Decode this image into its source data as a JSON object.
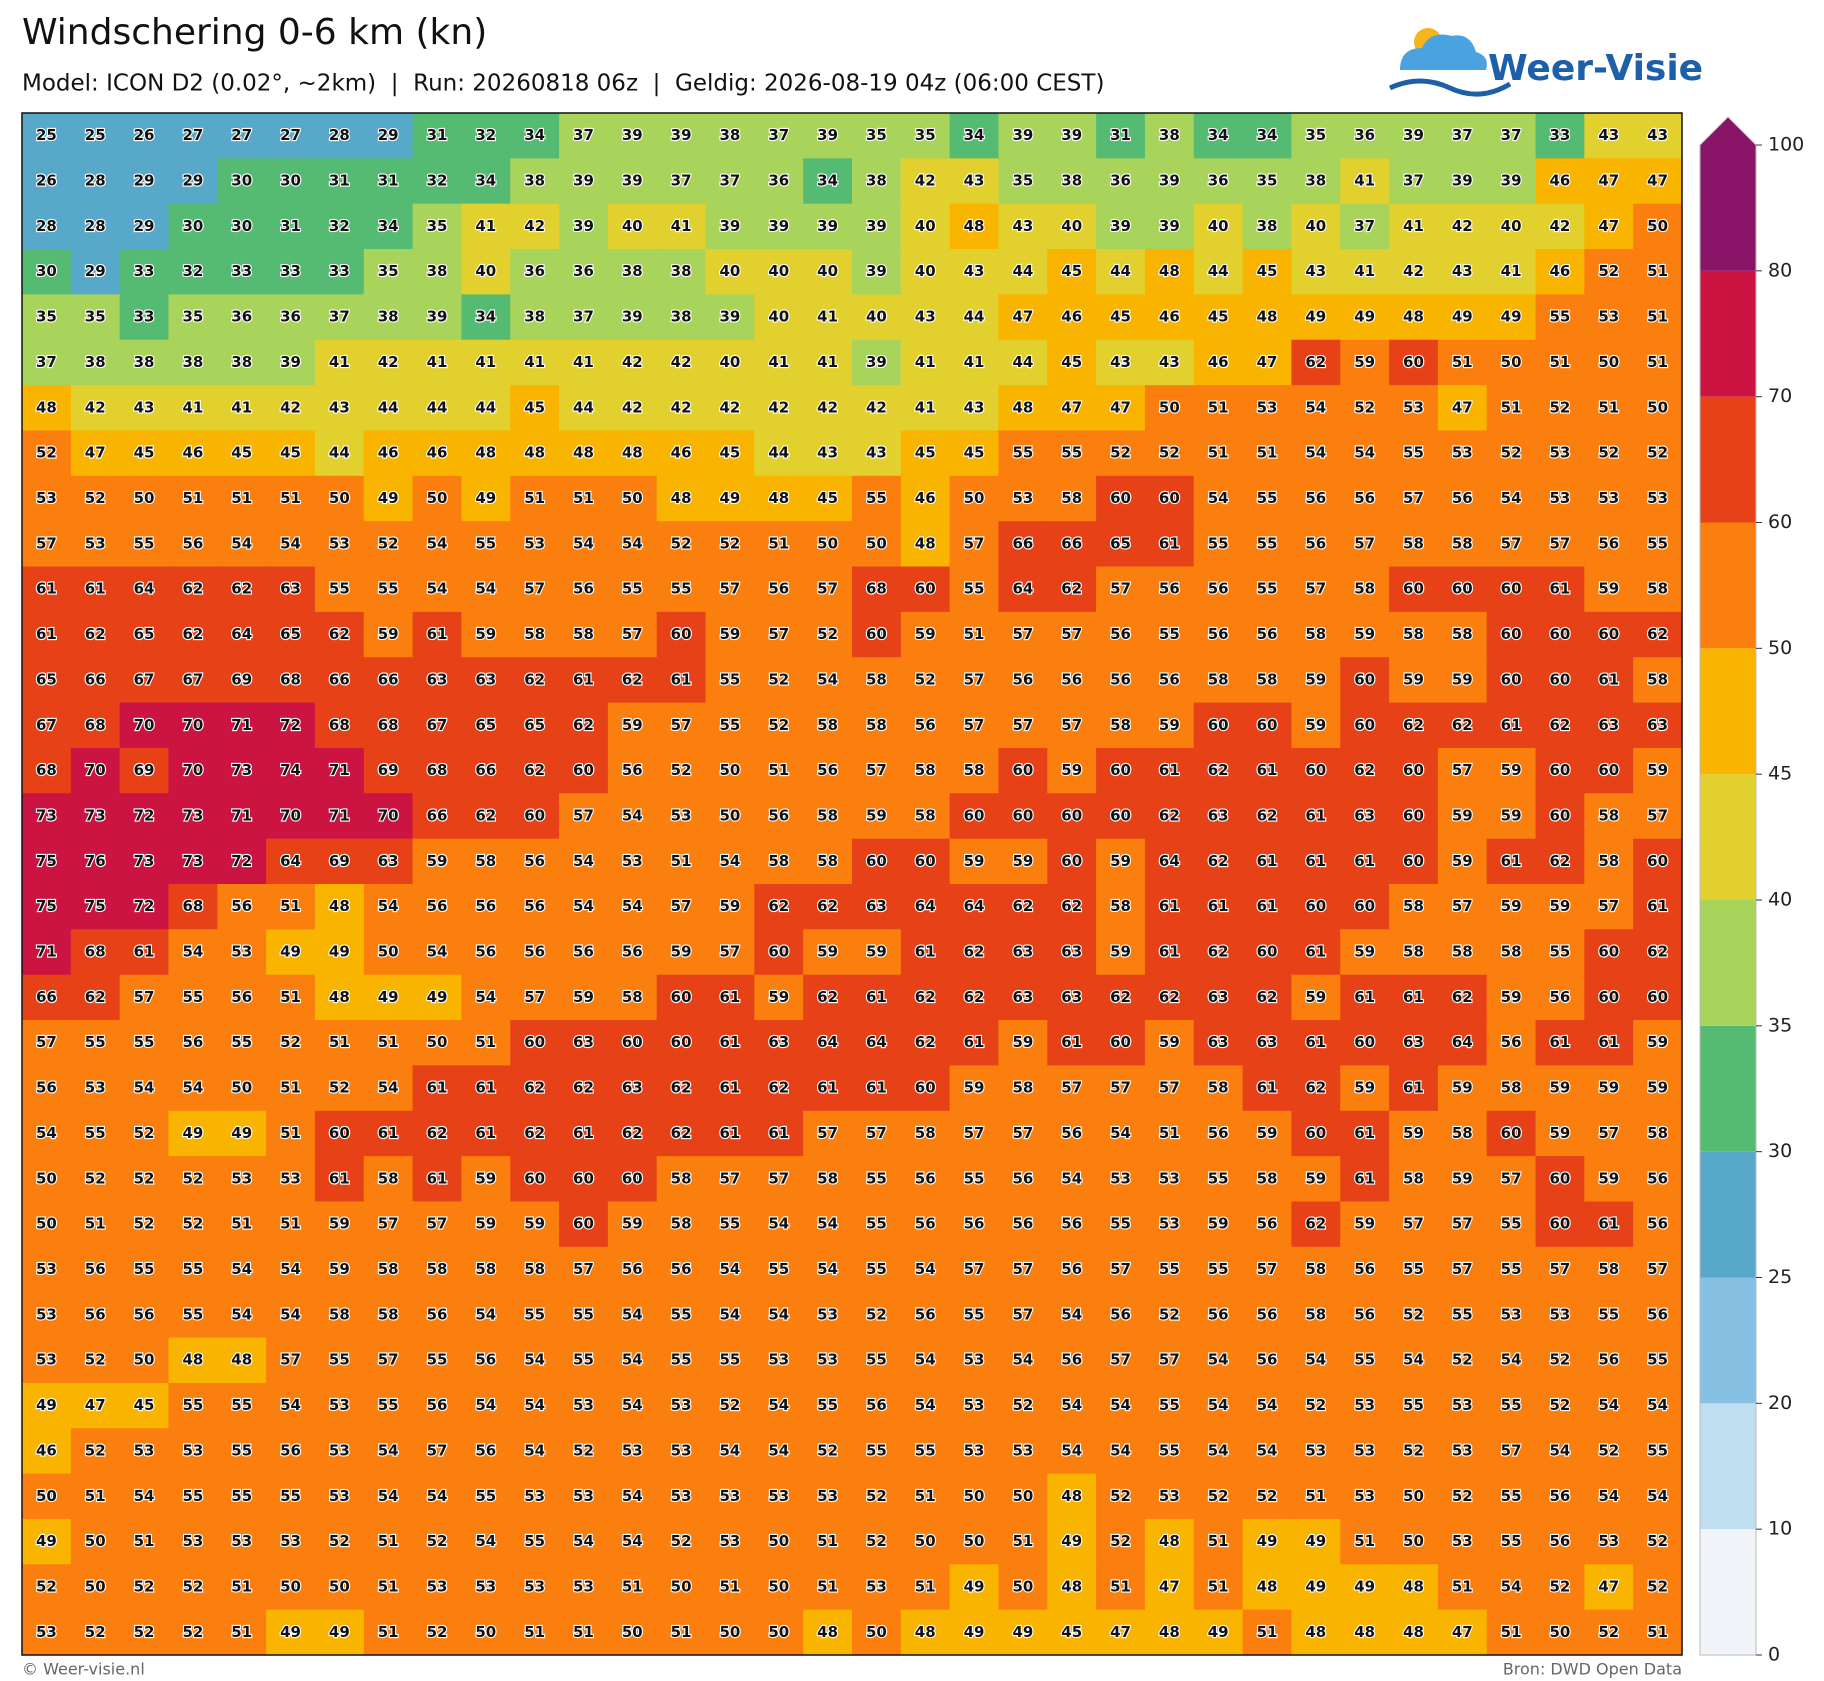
{
  "header": {
    "title": "Windschering 0-6 km (kn)",
    "subtitle": "Model: ICON D2 (0.02°, ~2km)  |  Run: 20260818 06z  |  Geldig: 2026-08-19 04z (06:00 CEST)"
  },
  "logo": "Weer-Visie",
  "map": {
    "type": "value-grid",
    "values": [
      [
        25,
        25,
        26,
        27,
        27,
        27,
        28,
        29,
        31,
        32,
        34,
        37,
        39,
        39,
        38,
        37,
        39,
        35,
        35,
        34,
        39,
        39,
        31,
        38,
        34,
        34,
        35,
        36,
        39,
        37,
        37,
        33,
        43,
        43
      ],
      [
        26,
        28,
        29,
        29,
        30,
        30,
        31,
        31,
        32,
        34,
        38,
        39,
        39,
        37,
        37,
        36,
        34,
        38,
        42,
        43,
        35,
        38,
        36,
        39,
        36,
        35,
        38,
        41,
        37,
        39,
        39,
        46,
        47,
        47
      ],
      [
        28,
        28,
        29,
        30,
        30,
        31,
        32,
        34,
        35,
        41,
        42,
        39,
        40,
        41,
        39,
        39,
        39,
        39,
        40,
        48,
        43,
        40,
        39,
        39,
        40,
        38,
        40,
        37,
        41,
        42,
        40,
        42,
        47,
        50
      ],
      [
        30,
        29,
        33,
        32,
        33,
        33,
        33,
        35,
        38,
        40,
        36,
        36,
        38,
        38,
        40,
        40,
        40,
        39,
        40,
        43,
        44,
        45,
        44,
        48,
        44,
        45,
        43,
        41,
        42,
        43,
        41,
        46,
        52,
        51
      ],
      [
        35,
        35,
        33,
        35,
        36,
        36,
        37,
        38,
        39,
        34,
        38,
        37,
        39,
        38,
        39,
        40,
        41,
        40,
        43,
        44,
        47,
        46,
        45,
        46,
        45,
        48,
        49,
        49,
        48,
        49,
        49,
        55,
        53,
        51
      ],
      [
        37,
        38,
        38,
        38,
        38,
        39,
        41,
        42,
        41,
        41,
        41,
        41,
        42,
        42,
        40,
        41,
        41,
        39,
        41,
        41,
        44,
        45,
        43,
        43,
        46,
        47,
        62,
        59,
        60,
        51,
        50,
        51,
        50,
        51
      ],
      [
        48,
        42,
        43,
        41,
        41,
        42,
        43,
        44,
        44,
        44,
        45,
        44,
        42,
        42,
        42,
        42,
        42,
        42,
        41,
        43,
        48,
        47,
        47,
        50,
        51,
        53,
        54,
        52,
        53,
        47,
        51,
        52,
        51,
        50
      ],
      [
        52,
        47,
        45,
        46,
        45,
        45,
        44,
        46,
        46,
        48,
        48,
        48,
        48,
        46,
        45,
        44,
        43,
        43,
        45,
        45,
        55,
        55,
        52,
        52,
        51,
        51,
        54,
        54,
        55,
        53,
        52,
        53,
        52,
        52
      ],
      [
        53,
        52,
        50,
        51,
        51,
        51,
        50,
        49,
        50,
        49,
        51,
        51,
        50,
        48,
        49,
        48,
        45,
        55,
        46,
        50,
        53,
        58,
        60,
        60,
        54,
        55,
        56,
        56,
        57,
        56,
        54,
        53,
        53,
        53
      ],
      [
        57,
        53,
        55,
        56,
        54,
        54,
        53,
        52,
        54,
        55,
        53,
        54,
        54,
        52,
        52,
        51,
        50,
        50,
        48,
        57,
        66,
        66,
        65,
        61,
        55,
        55,
        56,
        57,
        58,
        58,
        57,
        57,
        56,
        55
      ],
      [
        61,
        61,
        64,
        62,
        62,
        63,
        55,
        55,
        54,
        54,
        57,
        56,
        55,
        55,
        57,
        56,
        57,
        68,
        60,
        55,
        64,
        62,
        57,
        56,
        56,
        55,
        57,
        58,
        60,
        60,
        60,
        61,
        59,
        58
      ],
      [
        61,
        62,
        65,
        62,
        64,
        65,
        62,
        59,
        61,
        59,
        58,
        58,
        57,
        60,
        59,
        57,
        52,
        60,
        59,
        51,
        57,
        57,
        56,
        55,
        56,
        56,
        58,
        59,
        58,
        58,
        60,
        60,
        60,
        62
      ],
      [
        65,
        66,
        67,
        67,
        69,
        68,
        66,
        66,
        63,
        63,
        62,
        61,
        62,
        61,
        55,
        52,
        54,
        58,
        52,
        57,
        56,
        56,
        56,
        56,
        58,
        58,
        59,
        60,
        59,
        59,
        60,
        60,
        61,
        58
      ],
      [
        67,
        68,
        70,
        70,
        71,
        72,
        68,
        68,
        67,
        65,
        65,
        62,
        59,
        57,
        55,
        52,
        58,
        58,
        56,
        57,
        57,
        57,
        58,
        59,
        60,
        60,
        59,
        60,
        62,
        62,
        61,
        62,
        63,
        63
      ],
      [
        68,
        70,
        69,
        70,
        73,
        74,
        71,
        69,
        68,
        66,
        62,
        60,
        56,
        52,
        50,
        51,
        56,
        57,
        58,
        58,
        60,
        59,
        60,
        61,
        62,
        61,
        60,
        62,
        60,
        57,
        59,
        60,
        60,
        59
      ],
      [
        73,
        73,
        72,
        73,
        71,
        70,
        71,
        70,
        66,
        62,
        60,
        57,
        54,
        53,
        50,
        56,
        58,
        59,
        58,
        60,
        60,
        60,
        60,
        62,
        63,
        62,
        61,
        63,
        60,
        59,
        59,
        60,
        58,
        57
      ],
      [
        75,
        76,
        73,
        73,
        72,
        64,
        69,
        63,
        59,
        58,
        56,
        54,
        53,
        51,
        54,
        58,
        58,
        60,
        60,
        59,
        59,
        60,
        59,
        64,
        62,
        61,
        61,
        61,
        60,
        59,
        61,
        62,
        58,
        60
      ],
      [
        75,
        75,
        72,
        68,
        56,
        51,
        48,
        54,
        56,
        56,
        56,
        54,
        54,
        57,
        59,
        62,
        62,
        63,
        64,
        64,
        62,
        62,
        58,
        61,
        61,
        61,
        60,
        60,
        58,
        57,
        59,
        59,
        57,
        61
      ],
      [
        71,
        68,
        61,
        54,
        53,
        49,
        49,
        50,
        54,
        56,
        56,
        56,
        56,
        59,
        57,
        60,
        59,
        59,
        61,
        62,
        63,
        63,
        59,
        61,
        62,
        60,
        61,
        59,
        58,
        58,
        58,
        55,
        60,
        62
      ],
      [
        66,
        62,
        57,
        55,
        56,
        51,
        48,
        49,
        49,
        54,
        57,
        59,
        58,
        60,
        61,
        59,
        62,
        61,
        62,
        62,
        63,
        63,
        62,
        62,
        63,
        62,
        59,
        61,
        61,
        62,
        59,
        56,
        60,
        60
      ],
      [
        57,
        55,
        55,
        56,
        55,
        52,
        51,
        51,
        50,
        51,
        60,
        63,
        60,
        60,
        61,
        63,
        64,
        64,
        62,
        61,
        59,
        61,
        60,
        59,
        63,
        63,
        61,
        60,
        63,
        64,
        56,
        61,
        61,
        59
      ],
      [
        56,
        53,
        54,
        54,
        50,
        51,
        52,
        54,
        61,
        61,
        62,
        62,
        63,
        62,
        61,
        62,
        61,
        61,
        60,
        59,
        58,
        57,
        57,
        57,
        58,
        61,
        62,
        59,
        61,
        59,
        58,
        59,
        59,
        59
      ],
      [
        54,
        55,
        52,
        49,
        49,
        51,
        60,
        61,
        62,
        61,
        62,
        61,
        62,
        62,
        61,
        61,
        57,
        57,
        58,
        57,
        57,
        56,
        54,
        51,
        56,
        59,
        60,
        61,
        59,
        58,
        60,
        59,
        57,
        58
      ],
      [
        50,
        52,
        52,
        52,
        53,
        53,
        61,
        58,
        61,
        59,
        60,
        60,
        60,
        58,
        57,
        57,
        58,
        55,
        56,
        55,
        56,
        54,
        53,
        53,
        55,
        58,
        59,
        61,
        58,
        59,
        57,
        60,
        59,
        56
      ],
      [
        50,
        51,
        52,
        52,
        51,
        51,
        59,
        57,
        57,
        59,
        59,
        60,
        59,
        58,
        55,
        54,
        54,
        55,
        56,
        56,
        56,
        56,
        55,
        53,
        59,
        56,
        62,
        59,
        57,
        57,
        55,
        60,
        61,
        56
      ],
      [
        53,
        56,
        55,
        55,
        54,
        54,
        59,
        58,
        58,
        58,
        58,
        57,
        56,
        56,
        54,
        55,
        54,
        55,
        54,
        57,
        57,
        56,
        57,
        55,
        55,
        57,
        58,
        56,
        55,
        57,
        55,
        57,
        58,
        57
      ],
      [
        53,
        56,
        56,
        55,
        54,
        54,
        58,
        58,
        56,
        54,
        55,
        55,
        54,
        55,
        54,
        54,
        53,
        52,
        56,
        55,
        57,
        54,
        56,
        52,
        56,
        56,
        58,
        56,
        52,
        55,
        53,
        53,
        55,
        56
      ],
      [
        53,
        52,
        50,
        48,
        48,
        57,
        55,
        57,
        55,
        56,
        54,
        55,
        54,
        55,
        55,
        53,
        53,
        55,
        54,
        53,
        54,
        56,
        57,
        57,
        54,
        56,
        54,
        55,
        54,
        52,
        54,
        52,
        56,
        55
      ],
      [
        49,
        47,
        45,
        55,
        55,
        54,
        53,
        55,
        56,
        54,
        54,
        53,
        54,
        53,
        52,
        54,
        55,
        56,
        54,
        53,
        52,
        54,
        54,
        55,
        54,
        54,
        52,
        53,
        55,
        53,
        55,
        52,
        54,
        54
      ],
      [
        46,
        52,
        53,
        53,
        55,
        56,
        53,
        54,
        57,
        56,
        54,
        52,
        53,
        53,
        54,
        54,
        52,
        55,
        55,
        53,
        53,
        54,
        54,
        55,
        54,
        54,
        53,
        53,
        52,
        53,
        57,
        54,
        52,
        55
      ],
      [
        50,
        51,
        54,
        55,
        55,
        55,
        53,
        54,
        54,
        55,
        53,
        53,
        54,
        53,
        53,
        53,
        53,
        52,
        51,
        50,
        50,
        48,
        52,
        53,
        52,
        52,
        51,
        53,
        50,
        52,
        55,
        56,
        54,
        54
      ],
      [
        49,
        50,
        51,
        53,
        53,
        53,
        52,
        51,
        52,
        54,
        55,
        54,
        54,
        52,
        53,
        50,
        51,
        52,
        50,
        50,
        51,
        49,
        52,
        48,
        51,
        49,
        49,
        51,
        50,
        53,
        55,
        56,
        53,
        52
      ],
      [
        52,
        50,
        52,
        52,
        51,
        50,
        50,
        51,
        53,
        53,
        53,
        53,
        51,
        50,
        51,
        50,
        51,
        53,
        51,
        49,
        50,
        48,
        51,
        47,
        51,
        48,
        49,
        49,
        48,
        51,
        54,
        52,
        47,
        52
      ],
      [
        53,
        52,
        52,
        52,
        51,
        49,
        49,
        51,
        52,
        50,
        51,
        51,
        50,
        51,
        50,
        50,
        48,
        50,
        48,
        49,
        49,
        45,
        47,
        48,
        49,
        51,
        48,
        48,
        48,
        47,
        51,
        50,
        52,
        51
      ]
    ],
    "colorbar": {
      "ticks": [
        0,
        10,
        20,
        25,
        30,
        35,
        40,
        45,
        50,
        60,
        70,
        80,
        100
      ],
      "colors": [
        "#f1f5fa",
        "#bfdff0",
        "#86c1e4",
        "#58a9c9",
        "#55bb72",
        "#a9d45b",
        "#e2d02e",
        "#f9b400",
        "#fa7f0e",
        "#e74217",
        "#cc1442",
        "#8a1468"
      ]
    }
  },
  "footer": {
    "left": "© Weer-visie.nl",
    "right": "Bron: DWD Open Data"
  }
}
